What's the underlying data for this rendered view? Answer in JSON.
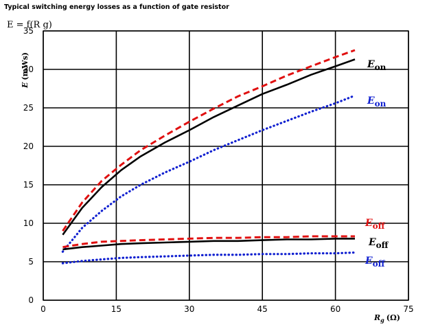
{
  "chart_data": {
    "type": "line",
    "title": "Typical switching energy losses as a function of gate resistor",
    "subtitle": "E = f(R g)",
    "xlabel": "R g (Ω)",
    "ylabel": "E (mWs)",
    "xlim": [
      0,
      75
    ],
    "ylim": [
      0,
      35
    ],
    "xticks": [
      0,
      15,
      30,
      45,
      60,
      75
    ],
    "yticks": [
      0,
      5,
      10,
      15,
      20,
      25,
      30,
      35
    ],
    "grid": true,
    "series": [
      {
        "name": "E_on",
        "label_main": "E",
        "label_sub": "on",
        "color": "#000000",
        "style": "solid",
        "x": [
          4,
          8,
          12,
          16,
          20,
          25,
          30,
          35,
          40,
          45,
          50,
          55,
          60,
          64
        ],
        "y": [
          8.5,
          12.0,
          14.7,
          16.9,
          18.7,
          20.5,
          22.1,
          23.8,
          25.3,
          26.8,
          28.0,
          29.3,
          30.4,
          31.3
        ]
      },
      {
        "name": "E_on",
        "label_main": "E",
        "label_sub": "on",
        "color": "#e01010",
        "style": "dashed",
        "x": [
          4,
          8,
          12,
          16,
          20,
          25,
          30,
          35,
          40,
          45,
          50,
          55,
          60,
          64
        ],
        "y": [
          9.0,
          12.7,
          15.5,
          17.6,
          19.5,
          21.4,
          23.2,
          24.9,
          26.5,
          27.8,
          29.2,
          30.4,
          31.6,
          32.5
        ]
      },
      {
        "name": "E_on",
        "label_main": "E",
        "label_sub": "on",
        "color": "#1020d0",
        "style": "dotted",
        "x": [
          4,
          8,
          12,
          16,
          20,
          25,
          30,
          35,
          40,
          45,
          50,
          55,
          60,
          64
        ],
        "y": [
          6.3,
          9.4,
          11.6,
          13.5,
          15.0,
          16.6,
          18.0,
          19.5,
          20.8,
          22.1,
          23.3,
          24.5,
          25.6,
          26.6
        ]
      },
      {
        "name": "E_off",
        "label_main": "E",
        "label_sub": "off",
        "color": "#e01010",
        "style": "dashed",
        "x": [
          4,
          8,
          12,
          16,
          20,
          25,
          30,
          35,
          40,
          45,
          50,
          55,
          60,
          64
        ],
        "y": [
          6.9,
          7.3,
          7.6,
          7.7,
          7.8,
          7.9,
          8.0,
          8.1,
          8.1,
          8.2,
          8.2,
          8.3,
          8.3,
          8.3
        ]
      },
      {
        "name": "E_off",
        "label_main": "E",
        "label_sub": "off",
        "color": "#000000",
        "style": "solid",
        "x": [
          4,
          8,
          12,
          16,
          20,
          25,
          30,
          35,
          40,
          45,
          50,
          55,
          60,
          64
        ],
        "y": [
          6.6,
          6.9,
          7.1,
          7.3,
          7.4,
          7.5,
          7.6,
          7.7,
          7.7,
          7.8,
          7.9,
          7.9,
          8.0,
          8.0
        ]
      },
      {
        "name": "E_off",
        "label_main": "E",
        "label_sub": "off",
        "color": "#1020d0",
        "style": "dotted",
        "x": [
          4,
          8,
          12,
          16,
          20,
          25,
          30,
          35,
          40,
          45,
          50,
          55,
          60,
          64
        ],
        "y": [
          4.8,
          5.1,
          5.3,
          5.5,
          5.6,
          5.7,
          5.8,
          5.9,
          5.9,
          6.0,
          6.0,
          6.1,
          6.1,
          6.2
        ]
      }
    ]
  }
}
